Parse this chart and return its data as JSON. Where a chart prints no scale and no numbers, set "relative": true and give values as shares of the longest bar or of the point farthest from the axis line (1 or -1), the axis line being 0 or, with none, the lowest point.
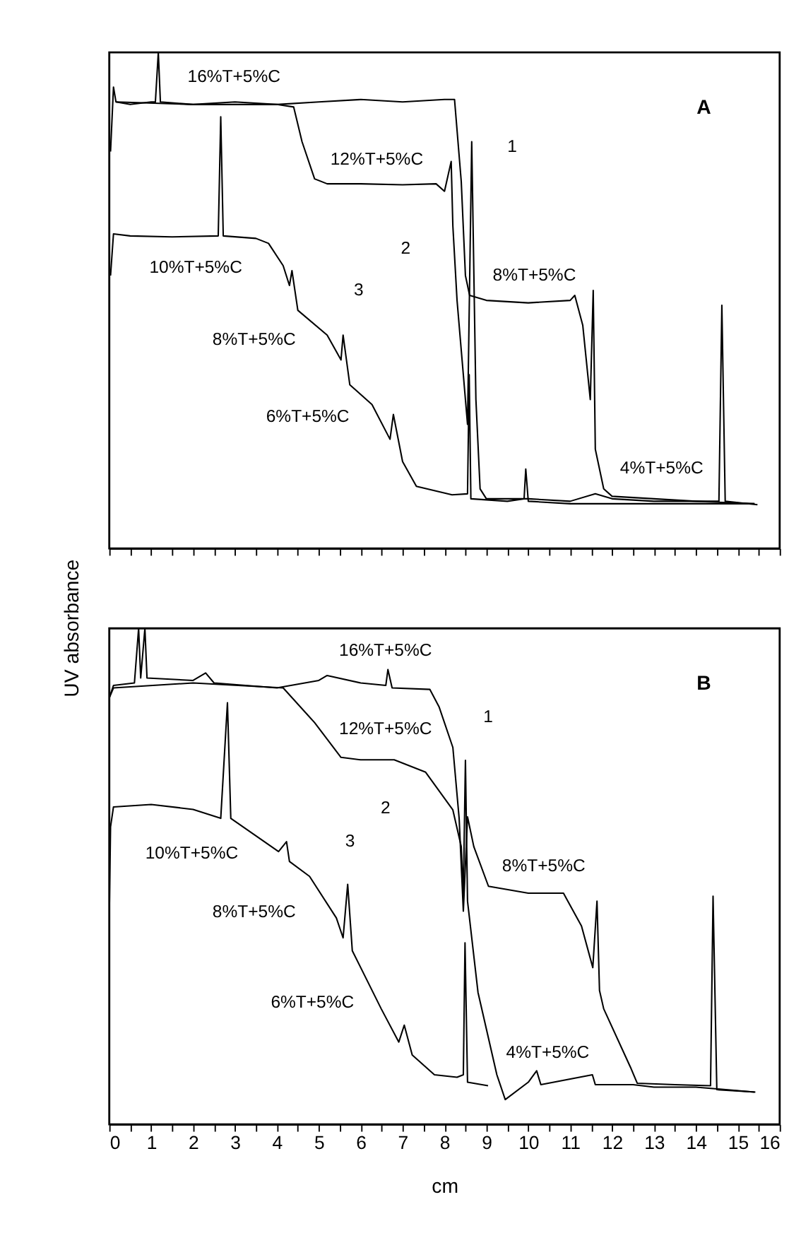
{
  "chart_data": [
    {
      "type": "line",
      "title": "A",
      "relative": true,
      "xlim": [
        0,
        16
      ],
      "tick_labels": false,
      "grid": false,
      "legend": false,
      "line_style": "solid",
      "marker": "none",
      "xticks": [
        0,
        {
          "value": 0.5,
          "label": null
        },
        1,
        {
          "value": 1.5,
          "label": null
        },
        2,
        {
          "value": 2.5,
          "label": null
        },
        3,
        {
          "value": 3.5,
          "label": null
        },
        4,
        {
          "value": 4.5,
          "label": null
        },
        5,
        {
          "value": 5.5,
          "label": null
        },
        6,
        {
          "value": 6.5,
          "label": null
        },
        7,
        {
          "value": 7.5,
          "label": null
        },
        8,
        {
          "value": 8.5,
          "label": null
        },
        9,
        {
          "value": 9.5,
          "label": null
        },
        10,
        {
          "value": 10.5,
          "label": null
        },
        11,
        {
          "value": 11.5,
          "label": null
        },
        12,
        {
          "value": 12.5,
          "label": null
        },
        13,
        {
          "value": 13.5,
          "label": null
        },
        14,
        {
          "value": 14.5,
          "label": null
        },
        15,
        {
          "value": 15.5,
          "label": null
        },
        16
      ],
      "series": [
        {
          "color": "#000000",
          "x": [
            0.03,
            0.1,
            0.16,
            0.5,
            1.0,
            1.1,
            1.17,
            1.22,
            2.0,
            3.0,
            4.0,
            5.0,
            6.0,
            7.0,
            8.0,
            8.24,
            8.4,
            8.5,
            8.6,
            9.0,
            10.0,
            11.0,
            11.11,
            11.3,
            11.48,
            11.55,
            11.6,
            11.8,
            12.0,
            13.0,
            14.0,
            14.55,
            14.62,
            14.7,
            15.47
          ],
          "values": [
            0.8,
            0.93,
            0.9,
            0.895,
            0.9,
            0.9,
            1.0,
            0.9,
            0.895,
            0.9,
            0.895,
            0.9,
            0.905,
            0.9,
            0.905,
            0.905,
            0.74,
            0.55,
            0.51,
            0.5,
            0.495,
            0.5,
            0.51,
            0.45,
            0.3,
            0.52,
            0.2,
            0.12,
            0.105,
            0.1,
            0.095,
            0.095,
            0.49,
            0.095,
            0.088
          ]
        },
        {
          "color": "#000000",
          "x": [
            0.16,
            2.0,
            4.0,
            4.4,
            4.6,
            4.9,
            5.2,
            6.0,
            7.0,
            7.8,
            8.0,
            8.16,
            8.2,
            8.3,
            8.55,
            8.65,
            8.75,
            8.85,
            9.0,
            10.0,
            11.0,
            11.6,
            12.0,
            13.0,
            14.0,
            15.4
          ],
          "values": [
            0.9,
            0.895,
            0.895,
            0.89,
            0.82,
            0.745,
            0.735,
            0.735,
            0.733,
            0.735,
            0.72,
            0.78,
            0.65,
            0.5,
            0.25,
            0.82,
            0.3,
            0.12,
            0.1,
            0.1,
            0.095,
            0.11,
            0.1,
            0.095,
            0.095,
            0.09
          ]
        },
        {
          "color": "#000000",
          "x": [
            0.03,
            0.1,
            0.5,
            1.5,
            2.6,
            2.66,
            2.72,
            3.5,
            3.8,
            4.15,
            4.3,
            4.36,
            4.5,
            5.2,
            5.53,
            5.58,
            5.74,
            6.27,
            6.7,
            6.78,
            7.0,
            7.33,
            8.18,
            8.55,
            8.59,
            8.63,
            9.5,
            9.9,
            9.94,
            10.0,
            11.0,
            12.0,
            13.0,
            14.0,
            15.4
          ],
          "values": [
            0.55,
            0.634,
            0.63,
            0.628,
            0.63,
            0.87,
            0.63,
            0.625,
            0.615,
            0.57,
            0.53,
            0.56,
            0.48,
            0.43,
            0.38,
            0.43,
            0.33,
            0.29,
            0.22,
            0.27,
            0.175,
            0.125,
            0.108,
            0.11,
            0.35,
            0.1,
            0.095,
            0.1,
            0.16,
            0.095,
            0.09,
            0.09,
            0.09,
            0.09,
            0.09
          ]
        }
      ],
      "annotations": [
        "16%T+5%C",
        "12%T+5%C",
        "1",
        "2",
        "10%T+5%C",
        "3",
        "8%T+5%C",
        "8%T+5%C",
        "6%T+5%C",
        "4%T+5%C"
      ]
    },
    {
      "type": "line",
      "title": "B",
      "relative": true,
      "xlim": [
        0,
        16
      ],
      "tick_labels": "x",
      "xlabel": "cm",
      "ylabel": "UV absorbance",
      "grid": false,
      "legend": false,
      "line_style": "solid",
      "marker": "none",
      "xticks": [
        0,
        {
          "value": 0.5,
          "label": null
        },
        1,
        {
          "value": 1.5,
          "label": null
        },
        2,
        {
          "value": 2.5,
          "label": null
        },
        3,
        {
          "value": 3.5,
          "label": null
        },
        4,
        {
          "value": 4.5,
          "label": null
        },
        5,
        {
          "value": 5.5,
          "label": null
        },
        6,
        {
          "value": 6.5,
          "label": null
        },
        7,
        {
          "value": 7.5,
          "label": null
        },
        8,
        {
          "value": 8.5,
          "label": null
        },
        9,
        {
          "value": 9.5,
          "label": null
        },
        10,
        {
          "value": 10.5,
          "label": null
        },
        11,
        {
          "value": 11.5,
          "label": null
        },
        12,
        {
          "value": 12.5,
          "label": null
        },
        13,
        {
          "value": 13.5,
          "label": null
        },
        14,
        {
          "value": 14.5,
          "label": null
        },
        15,
        {
          "value": 15.5,
          "label": null
        },
        16
      ],
      "series": [
        {
          "color": "#000000",
          "x": [
            0.0,
            0.1,
            0.6,
            0.7,
            0.75,
            0.85,
            0.9,
            2.0,
            2.3,
            2.5,
            4.0,
            5.0,
            5.2,
            6.0,
            6.6,
            6.65,
            6.75,
            7.65,
            7.87,
            8.2,
            8.35,
            8.45,
            8.55,
            8.7,
            9.05,
            10.0,
            10.84,
            11.27,
            11.54,
            11.64,
            11.7,
            11.8,
            12.44,
            12.6,
            13.5,
            14.35,
            14.41,
            14.5,
            15.42
          ],
          "values": [
            0.86,
            0.885,
            0.89,
            1.0,
            0.9,
            1.0,
            0.9,
            0.895,
            0.91,
            0.89,
            0.88,
            0.895,
            0.905,
            0.89,
            0.885,
            0.917,
            0.88,
            0.877,
            0.842,
            0.76,
            0.617,
            0.43,
            0.62,
            0.56,
            0.48,
            0.466,
            0.466,
            0.4,
            0.316,
            0.45,
            0.27,
            0.233,
            0.115,
            0.083,
            0.08,
            0.078,
            0.46,
            0.07,
            0.065
          ]
        },
        {
          "color": "#000000",
          "x": [
            0.0,
            0.1,
            2.0,
            4.15,
            4.9,
            5.53,
            6.0,
            6.8,
            7.55,
            8.2,
            8.4,
            8.45,
            8.5,
            8.55,
            8.8,
            9.25,
            9.45,
            10.0,
            10.2,
            10.3,
            11.53,
            11.6,
            12.5,
            13.0,
            14.0,
            15.4
          ],
          "values": [
            0.86,
            0.88,
            0.89,
            0.88,
            0.81,
            0.74,
            0.735,
            0.735,
            0.71,
            0.634,
            0.56,
            0.466,
            0.734,
            0.45,
            0.266,
            0.1,
            0.05,
            0.085,
            0.108,
            0.08,
            0.1,
            0.08,
            0.08,
            0.075,
            0.075,
            0.065
          ]
        },
        {
          "color": "#000000",
          "x": [
            0.0,
            0.03,
            0.1,
            1.0,
            2.0,
            2.66,
            2.82,
            2.9,
            4.04,
            4.23,
            4.3,
            4.78,
            5.42,
            5.58,
            5.69,
            5.8,
            6.49,
            6.91,
            7.04,
            7.23,
            7.76,
            8.3,
            8.45,
            8.49,
            8.55,
            9.04
          ],
          "values": [
            0.42,
            0.6,
            0.64,
            0.645,
            0.635,
            0.617,
            0.85,
            0.617,
            0.55,
            0.57,
            0.53,
            0.5,
            0.416,
            0.376,
            0.484,
            0.35,
            0.233,
            0.166,
            0.2,
            0.14,
            0.1,
            0.095,
            0.1,
            0.366,
            0.085,
            0.078
          ]
        }
      ],
      "annotations": [
        "16%T+5%C",
        "12%T+5%C",
        "1",
        "2",
        "10%T+5%C",
        "3",
        "8%T+5%C",
        "8%T+5%C",
        "6%T+5%C",
        "4%T+5%C"
      ]
    }
  ]
}
